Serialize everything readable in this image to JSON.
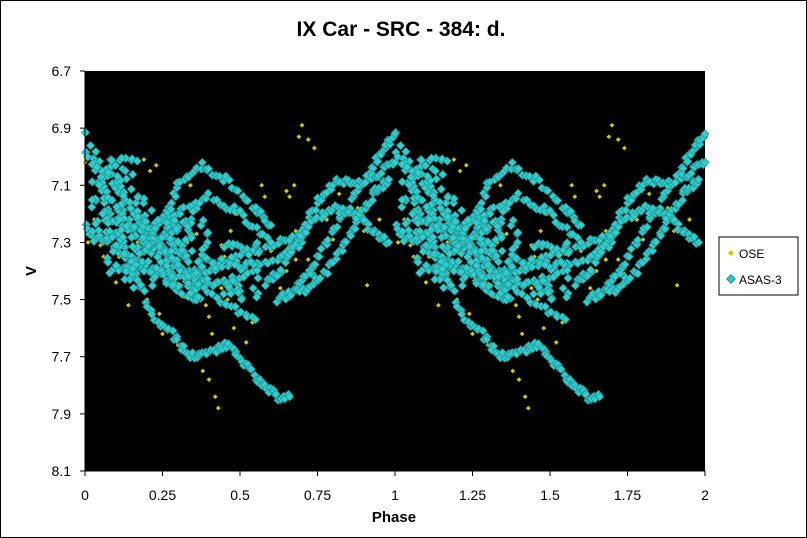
{
  "chart_data": {
    "type": "scatter",
    "title": "IX Car - SRC - 384: d.",
    "xlabel": "Phase",
    "ylabel": "V",
    "xlim": [
      0,
      2
    ],
    "ylim": [
      8.1,
      6.7
    ],
    "y_inverted": true,
    "x_ticks": [
      "0",
      "0.25",
      "0.5",
      "0.75",
      "1",
      "1.25",
      "1.5",
      "1.75",
      "2"
    ],
    "y_ticks": [
      "6.7",
      "6.9",
      "7.1",
      "7.3",
      "7.5",
      "7.7",
      "7.9",
      "8.1"
    ],
    "plot_background": "#000000",
    "grid": false,
    "legend_position": "right",
    "series": [
      {
        "name": "OSE",
        "color": "#d4c800",
        "marker": "diamond",
        "points": [
          [
            0.0,
            7.02
          ],
          [
            0.01,
            7.3
          ],
          [
            0.03,
            7.22
          ],
          [
            0.05,
            7.31
          ],
          [
            0.07,
            7.26
          ],
          [
            0.09,
            7.28
          ],
          [
            0.11,
            7.35
          ],
          [
            0.13,
            7.24
          ],
          [
            0.15,
            7.4
          ],
          [
            0.17,
            7.3
          ],
          [
            0.18,
            7.46
          ],
          [
            0.19,
            7.34
          ],
          [
            0.2,
            7.5
          ],
          [
            0.22,
            7.42
          ],
          [
            0.23,
            7.28
          ],
          [
            0.24,
            7.55
          ],
          [
            0.25,
            7.62
          ],
          [
            0.26,
            7.34
          ],
          [
            0.27,
            7.6
          ],
          [
            0.28,
            7.4
          ],
          [
            0.29,
            7.44
          ],
          [
            0.3,
            7.66
          ],
          [
            0.31,
            7.45
          ],
          [
            0.32,
            7.49
          ],
          [
            0.33,
            7.3
          ],
          [
            0.35,
            7.42
          ],
          [
            0.37,
            7.38
          ],
          [
            0.38,
            7.75
          ],
          [
            0.39,
            7.52
          ],
          [
            0.4,
            7.78
          ],
          [
            0.41,
            7.62
          ],
          [
            0.42,
            7.84
          ],
          [
            0.43,
            7.88
          ],
          [
            0.44,
            7.46
          ],
          [
            0.45,
            7.35
          ],
          [
            0.46,
            7.5
          ],
          [
            0.47,
            7.26
          ],
          [
            0.48,
            7.6
          ],
          [
            0.5,
            7.4
          ],
          [
            0.51,
            7.42
          ],
          [
            0.52,
            7.65
          ],
          [
            0.53,
            7.33
          ],
          [
            0.55,
            7.34
          ],
          [
            0.56,
            7.3
          ],
          [
            0.58,
            7.28
          ],
          [
            0.6,
            7.33
          ],
          [
            0.62,
            7.42
          ],
          [
            0.63,
            7.46
          ],
          [
            0.65,
            7.4
          ],
          [
            0.66,
            7.31
          ],
          [
            0.67,
            7.33
          ],
          [
            0.68,
            7.26
          ],
          [
            0.7,
            7.3
          ],
          [
            0.72,
            7.36
          ],
          [
            0.74,
            7.41
          ],
          [
            0.76,
            7.32
          ],
          [
            0.78,
            7.22
          ],
          [
            0.8,
            7.29
          ],
          [
            0.82,
            7.13
          ],
          [
            0.84,
            7.2
          ],
          [
            0.86,
            7.1
          ],
          [
            0.88,
            7.18
          ],
          [
            0.9,
            7.26
          ],
          [
            0.91,
            7.45
          ],
          [
            0.93,
            7.13
          ],
          [
            0.95,
            7.22
          ],
          [
            0.97,
            7.1
          ],
          [
            0.98,
            7.3
          ],
          [
            0.19,
            7.01
          ],
          [
            0.21,
            7.05
          ],
          [
            0.23,
            7.03
          ],
          [
            0.56,
            7.18
          ],
          [
            0.57,
            7.1
          ],
          [
            0.58,
            7.14
          ],
          [
            0.65,
            7.12
          ],
          [
            0.66,
            7.14
          ],
          [
            0.675,
            7.1
          ],
          [
            0.68,
            7.36
          ],
          [
            0.69,
            6.93
          ],
          [
            0.7,
            6.89
          ],
          [
            0.72,
            6.94
          ],
          [
            0.74,
            6.97
          ],
          [
            0.1,
            7.44
          ],
          [
            0.14,
            7.52
          ],
          [
            0.27,
            7.18
          ],
          [
            0.34,
            7.1
          ],
          [
            0.36,
            7.27
          ],
          [
            0.49,
            7.2
          ],
          [
            0.54,
            7.58
          ],
          [
            0.6,
            7.36
          ],
          [
            0.06,
            7.35
          ],
          [
            0.16,
            7.38
          ],
          [
            0.44,
            7.31
          ],
          [
            0.4,
            7.56
          ],
          [
            0.12,
            7.2
          ]
        ]
      },
      {
        "name": "ASAS-3",
        "color": "#33cccc",
        "marker": "diamond",
        "segments": [
          {
            "p": [
              0.0,
              0.15,
              0.25,
              0.33,
              0.45,
              0.55
            ],
            "v": [
              6.92,
              7.18,
              7.32,
              7.44,
              7.51,
              7.57
            ]
          },
          {
            "p": [
              0.0,
              0.1,
              0.2,
              0.3,
              0.4,
              0.5,
              0.62,
              0.7
            ],
            "v": [
              6.98,
              7.1,
              7.26,
              7.38,
              7.45,
              7.42,
              7.36,
              7.3
            ]
          },
          {
            "p": [
              0.0,
              0.08,
              0.17,
              0.27,
              0.38,
              0.5,
              0.62,
              0.7
            ],
            "v": [
              7.25,
              7.3,
              7.38,
              7.42,
              7.4,
              7.34,
              7.3,
              7.28
            ]
          },
          {
            "p": [
              0.05,
              0.15,
              0.22,
              0.28,
              0.34,
              0.4,
              0.46,
              0.51,
              0.57,
              0.62,
              0.66
            ],
            "v": [
              7.12,
              7.38,
              7.56,
              7.62,
              7.7,
              7.68,
              7.66,
              7.72,
              7.8,
              7.84,
              7.84
            ]
          },
          {
            "p": [
              0.15,
              0.25,
              0.3,
              0.38,
              0.45,
              0.55,
              0.6
            ],
            "v": [
              7.35,
              7.22,
              7.1,
              7.03,
              7.08,
              7.18,
              7.24
            ]
          },
          {
            "p": [
              0.1,
              0.2,
              0.3,
              0.4,
              0.5,
              0.6
            ],
            "v": [
              7.4,
              7.36,
              7.2,
              7.14,
              7.2,
              7.3
            ]
          },
          {
            "p": [
              0.68,
              0.74,
              0.8,
              0.86,
              0.92,
              0.96,
              1.0
            ],
            "v": [
              7.46,
              7.38,
              7.26,
              7.16,
              7.06,
              6.98,
              6.92
            ]
          },
          {
            "p": [
              0.7,
              0.76,
              0.82,
              0.88,
              0.94,
              1.0
            ],
            "v": [
              7.26,
              7.14,
              7.08,
              7.1,
              7.06,
              7.02
            ]
          },
          {
            "p": [
              0.58,
              0.63,
              0.68,
              0.74,
              0.8,
              0.87,
              0.93,
              0.98
            ],
            "v": [
              7.44,
              7.4,
              7.3,
              7.22,
              7.18,
              7.2,
              7.26,
              7.3
            ]
          },
          {
            "p": [
              0.62,
              0.66,
              0.72,
              0.78,
              0.84,
              0.89,
              0.94,
              0.98
            ],
            "v": [
              7.5,
              7.48,
              7.46,
              7.4,
              7.3,
              7.2,
              7.12,
              7.08
            ]
          }
        ],
        "clusters": [
          {
            "p": [
              0.06,
              0.4
            ],
            "v": [
              7.18,
              7.42
            ]
          },
          {
            "p": [
              0.24,
              0.56
            ],
            "v": [
              7.3,
              7.52
            ]
          },
          {
            "p": [
              0.12,
              0.34
            ],
            "v": [
              7.22,
              7.46
            ]
          },
          {
            "p": [
              0.02,
              0.2
            ],
            "v": [
              7.0,
              7.3
            ]
          }
        ],
        "note_period": "phased data repeated for phases 1-2"
      }
    ]
  }
}
